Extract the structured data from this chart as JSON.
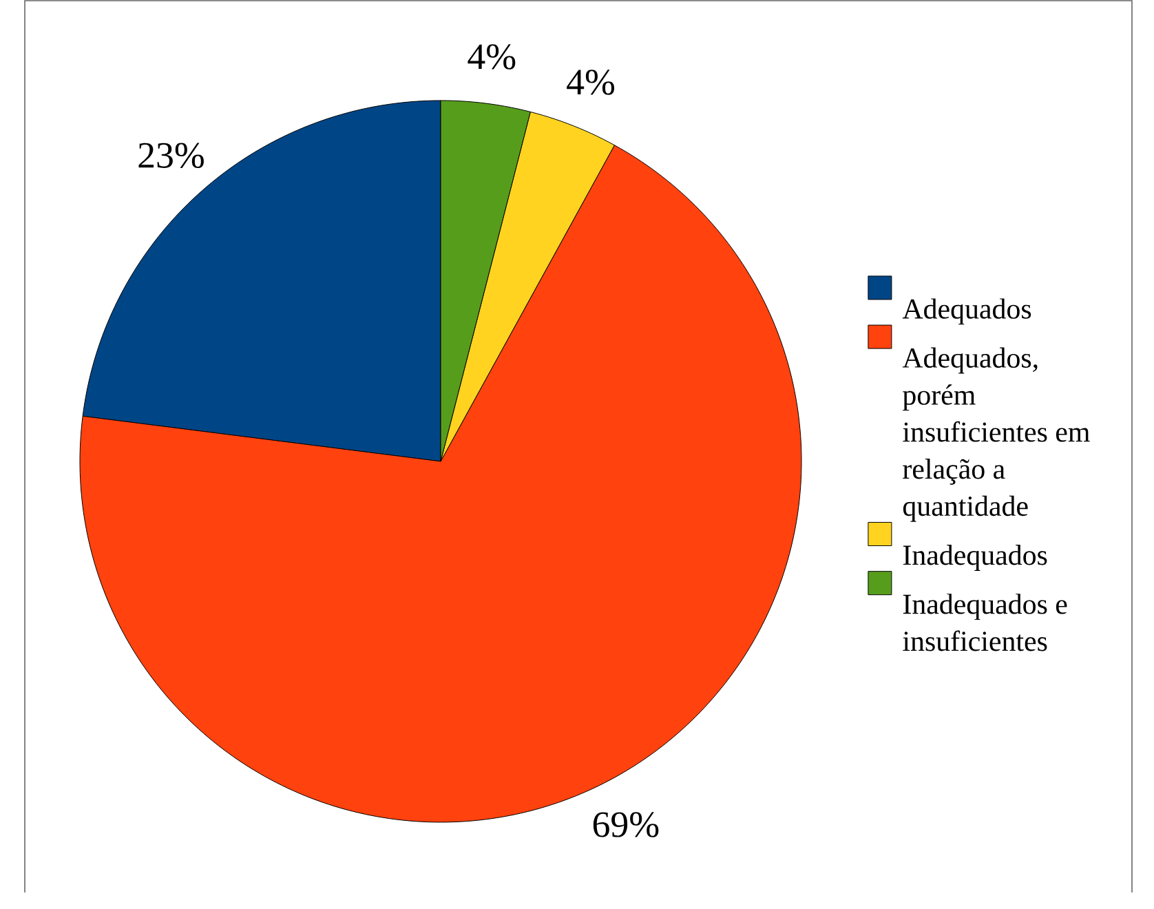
{
  "chart_data": {
    "type": "pie",
    "categories": [
      "Adequados",
      "Adequados, porém insuficientes em relação a quantidade",
      "Inadequados",
      "Inadequados e insuficientes"
    ],
    "values": [
      23,
      69,
      4,
      4
    ],
    "colors": [
      "#004586",
      "#ff420e",
      "#ffd320",
      "#579d1c"
    ],
    "value_labels": [
      "23%",
      "69%",
      "4%",
      "4%"
    ],
    "legend": "right"
  }
}
